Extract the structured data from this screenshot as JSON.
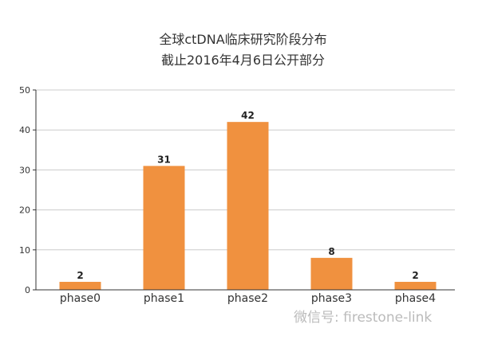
{
  "chart_data": {
    "type": "bar",
    "title": "全球ctDNA临床研究阶段分布",
    "subtitle": "截止2016年4月6日公开部分",
    "categories": [
      "phase0",
      "phase1",
      "phase2",
      "phase3",
      "phase4"
    ],
    "values": [
      2,
      31,
      42,
      8,
      2
    ],
    "xlabel": "",
    "ylabel": "",
    "ylim": [
      0,
      50
    ],
    "yticks": [
      0,
      10,
      20,
      30,
      40,
      50
    ],
    "grid": true,
    "bar_color": "#F0913F"
  },
  "watermark": "微信号: firestone-link"
}
